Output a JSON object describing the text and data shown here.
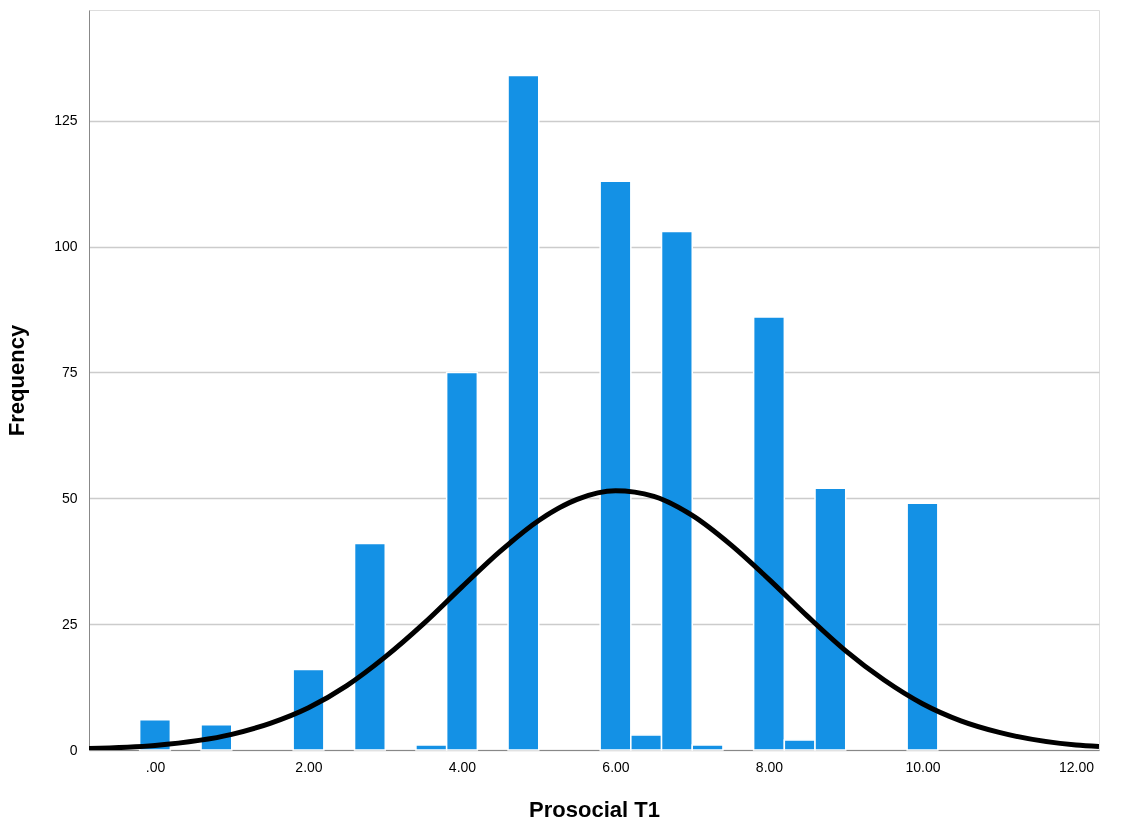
{
  "chart_data": {
    "type": "histogram",
    "xlabel": "Prosocial T1",
    "ylabel": "Frequency",
    "bins": [
      -0.2,
      0.2,
      0.6,
      1.0,
      1.4,
      1.8,
      2.2,
      2.6,
      3.0,
      3.4,
      3.8,
      4.2,
      4.6,
      5.0,
      5.4,
      5.8,
      6.2,
      6.6,
      7.0,
      7.4,
      7.8,
      8.2,
      8.6,
      9.0,
      9.4,
      9.8,
      10.2
    ],
    "values": [
      6,
      0,
      5,
      0,
      0,
      16,
      0,
      41,
      0,
      1,
      75,
      0,
      134,
      0,
      0,
      113,
      3,
      103,
      1,
      0,
      86,
      2,
      52,
      0,
      0,
      49
    ],
    "color": "#1491e5",
    "series": [
      {
        "type": "line",
        "color": "#000000",
        "x": [
          -0.86,
          0,
          1,
          1.5,
          2,
          2.5,
          3,
          3.5,
          4,
          4.5,
          5,
          5.5,
          6,
          6.5,
          7,
          7.5,
          8,
          8.5,
          9,
          9.5,
          10,
          10.5,
          11,
          12,
          12.3
        ],
        "values": [
          0.3,
          0.9,
          3.1,
          5.3,
          8.4,
          12.8,
          18.5,
          25.1,
          32.4,
          39.5,
          45.6,
          49.8,
          51.5,
          50.4,
          46.6,
          40.8,
          33.9,
          26.6,
          19.7,
          13.9,
          9.2,
          5.8,
          3.5,
          1.0,
          0.7
        ]
      }
    ],
    "xlim": [
      -0.86,
      12.3
    ],
    "xticks": [
      {
        "value": 0,
        "label": ".00"
      },
      {
        "value": 2,
        "label": "2.00"
      },
      {
        "value": 4,
        "label": "4.00"
      },
      {
        "value": 6,
        "label": "6.00"
      },
      {
        "value": 8,
        "label": "8.00"
      },
      {
        "value": 10,
        "label": "10.00"
      },
      {
        "value": 12,
        "label": "12.00"
      }
    ],
    "ylim": [
      0,
      147
    ],
    "yticks": [
      0,
      25,
      50,
      75,
      100,
      125
    ],
    "grid": "y",
    "line_style": "solid",
    "marker": "none"
  }
}
